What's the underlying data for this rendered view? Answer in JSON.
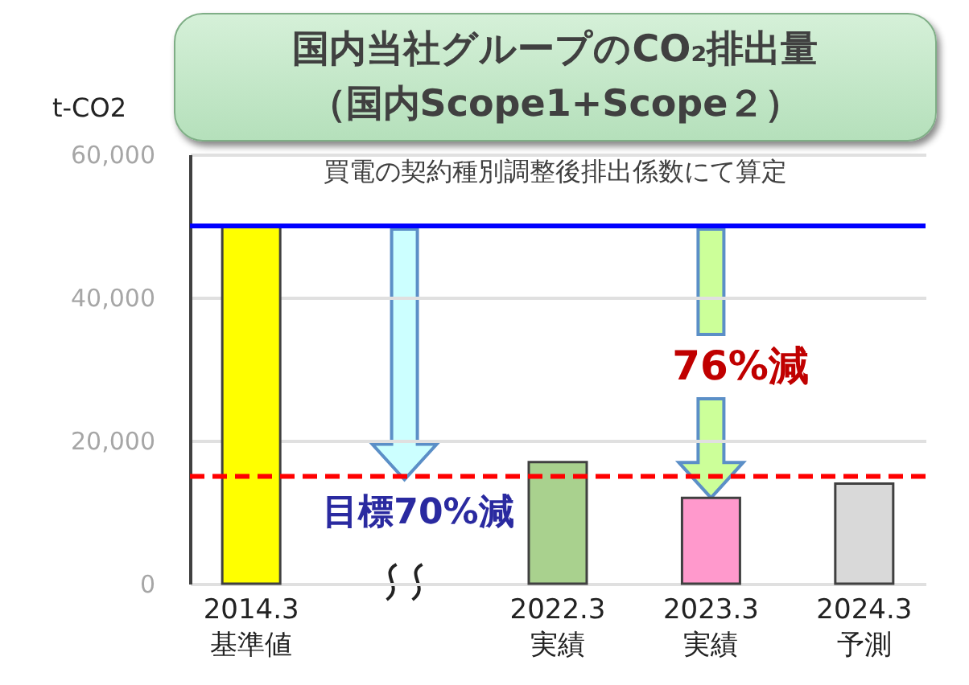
{
  "chart_data": {
    "type": "bar",
    "title": "国内当社グループのCO₂排出量",
    "subtitle": "（国内Scope1+Scope２）",
    "ylabel": "t-CO2",
    "categories": [
      "2014.3\n基準値",
      null,
      "2022.3\n実績",
      "2023.3\n実績",
      "2024.3\n予測"
    ],
    "values": [
      50000,
      null,
      17000,
      12000,
      14000
    ],
    "colors": [
      "#ffff00",
      "#ffffff",
      "#a9d18e",
      "#ff99cc",
      "#d9d9d9"
    ],
    "ylim": [
      0,
      60000
    ],
    "yticks": [
      {
        "value": 0,
        "label": "0"
      },
      {
        "value": 20000,
        "label": "20,000"
      },
      {
        "value": 40000,
        "label": "40,000"
      },
      {
        "value": 60000,
        "label": "60,000"
      }
    ],
    "grid": "y",
    "ref_lines": [
      {
        "axis": "y",
        "value": 50000,
        "color": "#0000ff",
        "line_style": "solid"
      },
      {
        "axis": "y",
        "value": 15000,
        "color": "#ff0000",
        "line_style": "dashed"
      }
    ],
    "annotations": [
      "買電の契約種別調整後排出係数にて算定",
      "76%減",
      {
        "text": "目標70%減",
        "y": 15000
      }
    ]
  }
}
